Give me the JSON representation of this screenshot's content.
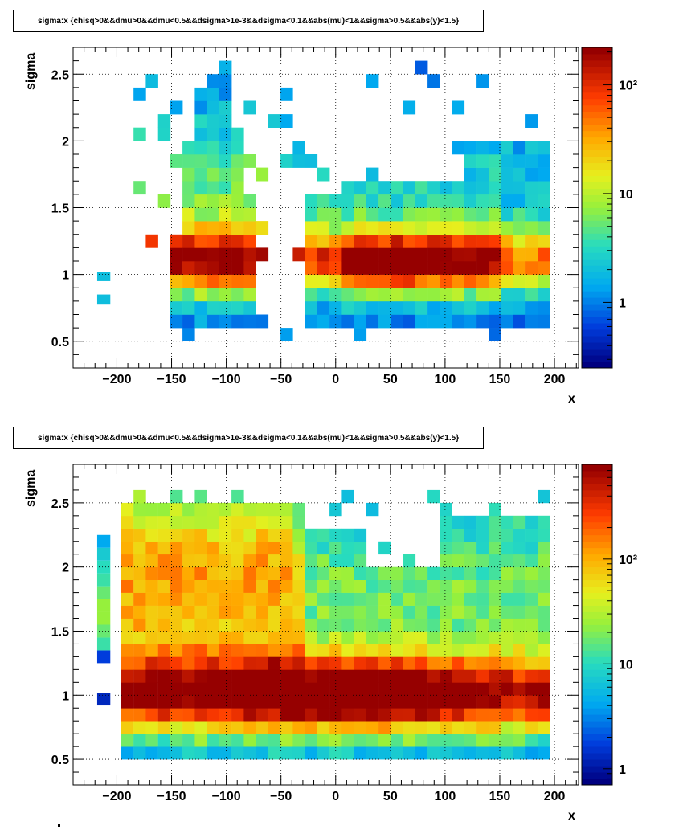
{
  "chart_data": [
    {
      "type": "heatmap",
      "title": "sigma:x {chisq>0&&dmu>0&&dmu<0.5&&dsigma>1e-3&&dsigma<0.1&&abs(mu)<1&&sigma>0.5&&abs(y)<1.5}",
      "xlabel": "x",
      "ylabel": "sigma",
      "xlim": [
        -240,
        222
      ],
      "ylim": [
        0.3,
        2.7
      ],
      "x_ticks": [
        "−200",
        "−150",
        "−100",
        "−50",
        "0",
        "50",
        "100",
        "150",
        "200"
      ],
      "y_ticks": [
        "0.5",
        "1",
        "1.5",
        "2",
        "2.5"
      ],
      "colorbar": {
        "scale": "log",
        "range": [
          0.25,
          220
        ],
        "ticks": [
          "1",
          "10",
          "10²"
        ]
      },
      "grid": true,
      "bins": {
        "x_range": [
          -196,
          196
        ],
        "bin_width_x": 11.2,
        "y_range": [
          0.5,
          2.6
        ],
        "bin_width_y": 0.1
      }
    },
    {
      "type": "heatmap",
      "title": "sigma:x {chisq>0&&dmu>0&&dmu<0.5&&dsigma>1e-3&&dsigma<0.1&&abs(mu)<1&&sigma>0.5&&abs(y)<1.5}",
      "xlabel": "x",
      "ylabel": "sigma",
      "xlim": [
        -240,
        222
      ],
      "ylim": [
        0.3,
        2.8
      ],
      "x_ticks": [
        "−200",
        "−150",
        "−100",
        "−50",
        "0",
        "50",
        "100",
        "150",
        "200"
      ],
      "y_ticks": [
        "0.5",
        "1",
        "1.5",
        "2",
        "2.5"
      ],
      "colorbar": {
        "scale": "log",
        "range": [
          0.7,
          800
        ],
        "ticks": [
          "1",
          "10",
          "10²"
        ]
      },
      "grid": true,
      "bins": {
        "x_range": [
          -196,
          196
        ],
        "bin_width_x": 11.2,
        "y_range": [
          0.5,
          2.6
        ],
        "bin_width_y": 0.1
      }
    }
  ]
}
